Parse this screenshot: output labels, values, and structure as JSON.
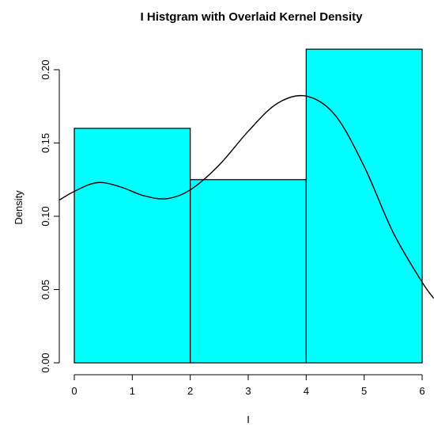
{
  "chart_data": {
    "type": "bar",
    "title": "I Histgram with Overlaid Kernel Density",
    "xlabel": "I",
    "ylabel": "Density",
    "bins": [
      {
        "x0": 0,
        "x1": 2,
        "density": 0.16
      },
      {
        "x0": 2,
        "x1": 4,
        "density": 0.125
      },
      {
        "x0": 4,
        "x1": 6,
        "density": 0.214
      }
    ],
    "density_curve": {
      "x": [
        -0.3,
        0.0,
        0.4,
        0.8,
        1.2,
        1.6,
        2.0,
        2.5,
        3.0,
        3.5,
        4.0,
        4.5,
        5.0,
        5.5,
        6.0,
        6.2
      ],
      "y": [
        0.11,
        0.117,
        0.123,
        0.12,
        0.114,
        0.112,
        0.118,
        0.135,
        0.158,
        0.177,
        0.182,
        0.169,
        0.134,
        0.089,
        0.055,
        0.044
      ]
    },
    "xlim": [
      0,
      6
    ],
    "ylim": [
      0,
      0.2
    ],
    "x_ticks": [
      "0",
      "1",
      "2",
      "3",
      "4",
      "5",
      "6"
    ],
    "y_ticks": [
      "0.00",
      "0.05",
      "0.10",
      "0.15",
      "0.20"
    ],
    "bar_color": "#00ffff",
    "line_color": "#000000"
  }
}
